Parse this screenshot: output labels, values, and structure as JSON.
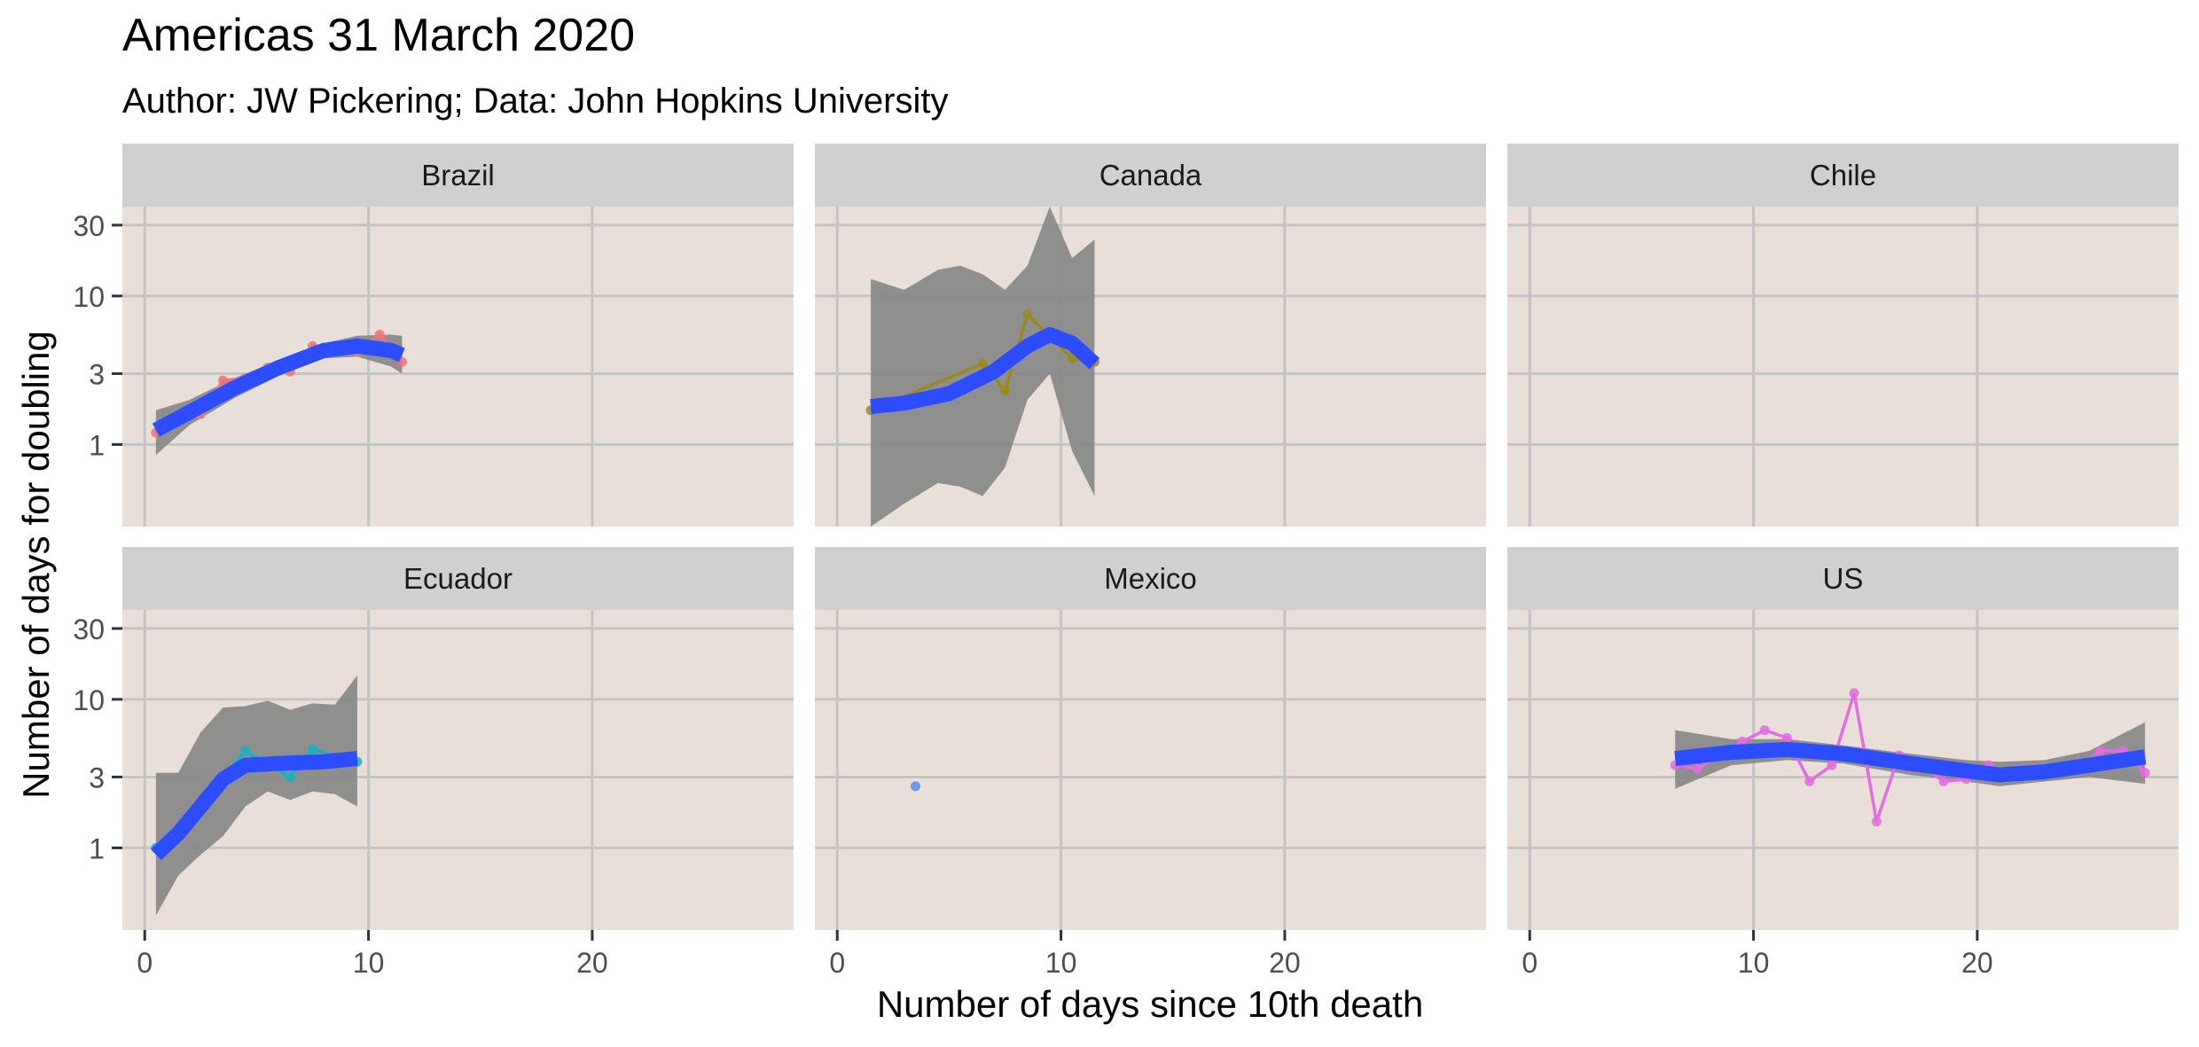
{
  "chart_data": {
    "type": "line",
    "title": "Americas 31 March 2020",
    "subtitle": "Author: JW Pickering; Data: John Hopkins University",
    "xlabel": "Number of days since 10th death",
    "ylabel": "Number of days for doubling",
    "x_ticks": [
      0,
      10,
      20
    ],
    "y_ticks": [
      1,
      3,
      10,
      30
    ],
    "y_scale": "log",
    "xlim": [
      -1,
      29
    ],
    "ylim": [
      0.28,
      40
    ],
    "grid": true,
    "legend": "none",
    "colors": {
      "panel_background": "#e8e0d8",
      "strip_background": "#d0d0d0",
      "grid": "#c4c4c4",
      "smooth_line": "#2c4cff",
      "ribbon": "#8a8a8a"
    },
    "panels": [
      {
        "name": "Brazil",
        "color": "#f0737a",
        "points": [
          [
            0.5,
            1.2
          ],
          [
            2.5,
            1.6
          ],
          [
            3.5,
            2.7
          ],
          [
            4.5,
            2.8
          ],
          [
            5.5,
            3.3
          ],
          [
            6.5,
            3.1
          ],
          [
            7.5,
            4.6
          ],
          [
            8.5,
            4.5
          ],
          [
            9.5,
            4.2
          ],
          [
            10.5,
            5.5
          ],
          [
            11.5,
            3.6
          ]
        ],
        "smooth": [
          [
            0.5,
            1.25
          ],
          [
            2,
            1.65
          ],
          [
            4,
            2.4
          ],
          [
            6,
            3.3
          ],
          [
            8,
            4.3
          ],
          [
            9.5,
            4.6
          ],
          [
            11,
            4.3
          ],
          [
            11.5,
            4.0
          ]
        ],
        "ribbon_lower": [
          [
            0.5,
            0.85
          ],
          [
            2,
            1.35
          ],
          [
            4,
            2.05
          ],
          [
            6,
            2.9
          ],
          [
            8,
            3.8
          ],
          [
            9.5,
            3.9
          ],
          [
            11,
            3.35
          ],
          [
            11.5,
            3.0
          ]
        ],
        "ribbon_upper": [
          [
            0.5,
            1.7
          ],
          [
            2,
            2.0
          ],
          [
            4,
            2.8
          ],
          [
            6,
            3.7
          ],
          [
            8,
            4.8
          ],
          [
            9.5,
            5.4
          ],
          [
            11,
            5.5
          ],
          [
            11.5,
            5.4
          ]
        ]
      },
      {
        "name": "Canada",
        "color": "#9a8a1e",
        "points": [
          [
            1.5,
            1.7
          ],
          [
            6.5,
            3.5
          ],
          [
            7.5,
            2.3
          ],
          [
            8.5,
            7.5
          ],
          [
            10.5,
            3.8
          ],
          [
            11.5,
            3.6
          ]
        ],
        "smooth": [
          [
            1.5,
            1.8
          ],
          [
            3,
            1.9
          ],
          [
            5,
            2.2
          ],
          [
            7,
            3.1
          ],
          [
            8.5,
            4.6
          ],
          [
            9.5,
            5.5
          ],
          [
            10.5,
            4.8
          ],
          [
            11.5,
            3.5
          ]
        ],
        "ribbon_lower": [
          [
            1.5,
            0.28
          ],
          [
            3,
            0.4
          ],
          [
            4.5,
            0.55
          ],
          [
            5.5,
            0.52
          ],
          [
            6.5,
            0.45
          ],
          [
            7.5,
            0.7
          ],
          [
            8.5,
            2.0
          ],
          [
            9.5,
            3.0
          ],
          [
            10.5,
            0.9
          ],
          [
            11.5,
            0.45
          ]
        ],
        "ribbon_upper": [
          [
            1.5,
            13
          ],
          [
            3,
            11
          ],
          [
            4.5,
            15
          ],
          [
            5.5,
            16
          ],
          [
            6.5,
            14
          ],
          [
            7.5,
            11
          ],
          [
            8.5,
            16
          ],
          [
            9.5,
            40
          ],
          [
            10.5,
            18
          ],
          [
            11.5,
            24
          ]
        ]
      },
      {
        "name": "Chile",
        "color": "#4caf50",
        "points": [],
        "smooth": [],
        "ribbon_lower": [],
        "ribbon_upper": []
      },
      {
        "name": "Ecuador",
        "color": "#17b3c4",
        "points": [
          [
            0.5,
            1.0
          ],
          [
            2.5,
            2.0
          ],
          [
            4.5,
            4.5
          ],
          [
            6.5,
            3.0
          ],
          [
            7.5,
            4.6
          ],
          [
            9.5,
            3.8
          ]
        ],
        "smooth": [
          [
            0.5,
            0.9
          ],
          [
            1.5,
            1.25
          ],
          [
            2.5,
            1.9
          ],
          [
            3.5,
            2.9
          ],
          [
            4.5,
            3.6
          ],
          [
            6,
            3.7
          ],
          [
            8,
            3.8
          ],
          [
            9.5,
            4.0
          ]
        ],
        "ribbon_lower": [
          [
            0.5,
            0.35
          ],
          [
            1.5,
            0.65
          ],
          [
            2.5,
            0.9
          ],
          [
            3.5,
            1.2
          ],
          [
            4.5,
            1.9
          ],
          [
            5.5,
            2.4
          ],
          [
            6.5,
            2.1
          ],
          [
            7.5,
            2.4
          ],
          [
            8.5,
            2.3
          ],
          [
            9.5,
            1.9
          ]
        ],
        "ribbon_upper": [
          [
            0.5,
            3.2
          ],
          [
            1.5,
            3.2
          ],
          [
            2.5,
            6.0
          ],
          [
            3.5,
            8.8
          ],
          [
            4.5,
            9.0
          ],
          [
            5.5,
            9.8
          ],
          [
            6.5,
            8.5
          ],
          [
            7.5,
            9.4
          ],
          [
            8.5,
            9.2
          ],
          [
            9.5,
            14.5
          ]
        ]
      },
      {
        "name": "Mexico",
        "color": "#5b8bf0",
        "points": [
          [
            3.5,
            2.6
          ]
        ],
        "smooth": [],
        "ribbon_lower": [],
        "ribbon_upper": []
      },
      {
        "name": "US",
        "color": "#e46be0",
        "points": [
          [
            6.5,
            3.6
          ],
          [
            7.5,
            3.4
          ],
          [
            9.5,
            5.2
          ],
          [
            10.5,
            6.2
          ],
          [
            11.5,
            5.5
          ],
          [
            12.5,
            2.8
          ],
          [
            13.5,
            3.6
          ],
          [
            14.5,
            11
          ],
          [
            15.5,
            1.5
          ],
          [
            16.5,
            4.2
          ],
          [
            17.5,
            3.6
          ],
          [
            18.5,
            2.8
          ],
          [
            19.5,
            2.9
          ],
          [
            20.5,
            3.6
          ],
          [
            21.5,
            3.0
          ],
          [
            22.5,
            3.4
          ],
          [
            23.5,
            3.2
          ],
          [
            24.5,
            3.4
          ],
          [
            25.5,
            4.5
          ],
          [
            26.5,
            4.5
          ],
          [
            27.5,
            3.2
          ]
        ],
        "smooth": [
          [
            6.5,
            4.0
          ],
          [
            9,
            4.4
          ],
          [
            11.5,
            4.6
          ],
          [
            14,
            4.3
          ],
          [
            17,
            3.7
          ],
          [
            19.5,
            3.3
          ],
          [
            21,
            3.1
          ],
          [
            23,
            3.25
          ],
          [
            25,
            3.6
          ],
          [
            27.5,
            4.1
          ]
        ],
        "ribbon_lower": [
          [
            6.5,
            2.5
          ],
          [
            9,
            3.6
          ],
          [
            11.5,
            3.9
          ],
          [
            14,
            3.7
          ],
          [
            17,
            3.1
          ],
          [
            19.5,
            2.8
          ],
          [
            21,
            2.6
          ],
          [
            23,
            2.8
          ],
          [
            25,
            3.0
          ],
          [
            27.5,
            2.7
          ]
        ],
        "ribbon_upper": [
          [
            6.5,
            6.2
          ],
          [
            9,
            5.4
          ],
          [
            11.5,
            5.4
          ],
          [
            14,
            4.9
          ],
          [
            17,
            4.3
          ],
          [
            19.5,
            3.9
          ],
          [
            21,
            3.8
          ],
          [
            23,
            3.9
          ],
          [
            25,
            4.5
          ],
          [
            27.5,
            7.0
          ]
        ]
      }
    ]
  }
}
